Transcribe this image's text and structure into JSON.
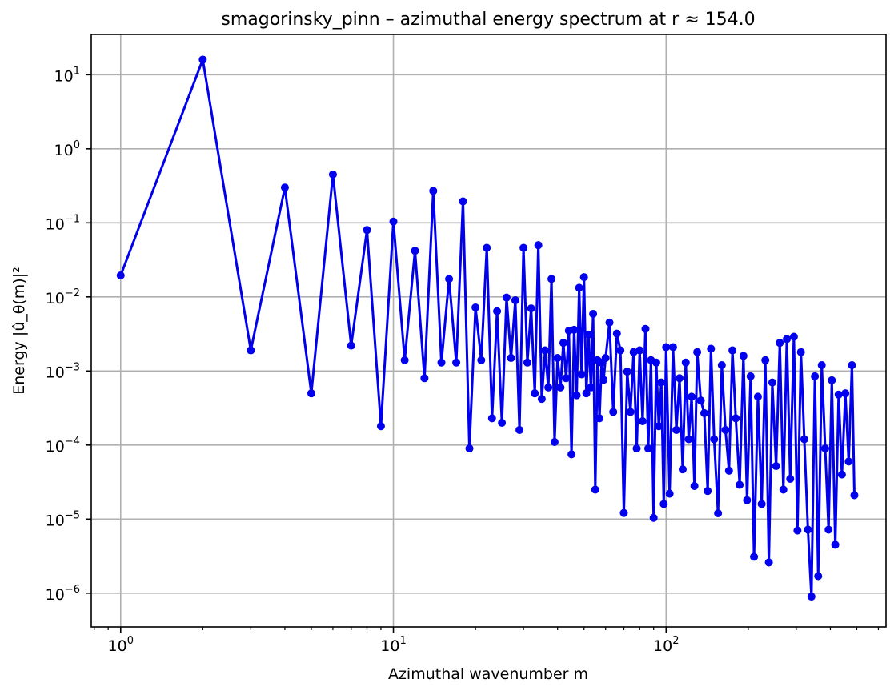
{
  "chart_data": {
    "type": "line",
    "title": "smagorinsky_pinn – azimuthal energy spectrum at r ≈ 154.0",
    "xlabel": "Azimuthal wavenumber m",
    "ylabel": "Energy |û_θ(m)|²",
    "xscale": "log",
    "yscale": "log",
    "xlim": [
      0.78,
      640
    ],
    "ylim": [
      3.5e-07,
      35
    ],
    "grid": true,
    "color": "#0000ee",
    "marker": "circle",
    "x_ticks": [
      {
        "value": 1,
        "label": "10",
        "exp": "0"
      },
      {
        "value": 10,
        "label": "10",
        "exp": "1"
      },
      {
        "value": 100,
        "label": "10",
        "exp": "2"
      }
    ],
    "y_ticks": [
      {
        "value": 1e-06,
        "label": "10",
        "exp": "−6"
      },
      {
        "value": 1e-05,
        "label": "10",
        "exp": "−5"
      },
      {
        "value": 0.0001,
        "label": "10",
        "exp": "−4"
      },
      {
        "value": 0.001,
        "label": "10",
        "exp": "−3"
      },
      {
        "value": 0.01,
        "label": "10",
        "exp": "−2"
      },
      {
        "value": 0.1,
        "label": "10",
        "exp": "−1"
      },
      {
        "value": 1,
        "label": "10",
        "exp": "0"
      },
      {
        "value": 10,
        "label": "10",
        "exp": "1"
      }
    ],
    "series": [
      {
        "x": [
          1,
          2,
          3,
          4,
          5,
          6,
          7,
          8,
          9,
          10,
          11,
          12,
          13,
          14,
          15,
          16,
          17,
          18,
          19,
          20,
          21,
          22,
          23,
          24,
          25,
          26,
          27,
          28,
          29,
          30,
          31,
          32,
          33,
          34,
          35,
          36,
          37,
          38,
          39,
          40,
          41,
          42,
          43,
          44,
          45,
          46,
          47,
          48,
          49,
          50,
          51,
          52,
          53,
          54,
          55,
          56,
          57,
          58,
          59,
          60,
          62,
          64,
          66,
          68,
          70,
          72,
          74,
          76,
          78,
          80,
          82,
          84,
          86,
          88,
          90,
          92,
          94,
          96,
          98,
          100,
          103,
          106,
          109,
          112,
          115,
          118,
          121,
          124,
          127,
          130,
          134,
          138,
          142,
          146,
          150,
          155,
          160,
          165,
          170,
          175,
          180,
          186,
          192,
          198,
          204,
          210,
          217,
          224,
          231,
          238,
          245,
          253,
          261,
          269,
          277,
          285,
          294,
          303,
          312,
          321,
          331,
          341,
          351,
          361,
          372,
          383,
          394,
          405,
          417,
          429,
          441,
          454,
          467,
          480,
          490
        ],
        "y": [
          0.0195,
          16,
          0.0019,
          0.3,
          0.0005,
          0.45,
          0.0022,
          0.08,
          0.00018,
          0.104,
          0.0014,
          0.042,
          0.0008,
          0.27,
          0.0013,
          0.0175,
          0.0013,
          0.195,
          9e-05,
          0.0072,
          0.0014,
          0.046,
          0.00023,
          0.0064,
          0.0002,
          0.0098,
          0.0015,
          0.009,
          0.00016,
          0.046,
          0.0013,
          0.007,
          0.0005,
          0.05,
          0.00042,
          0.0019,
          0.0006,
          0.0175,
          0.00011,
          0.0015,
          0.0006,
          0.0024,
          0.0008,
          0.0035,
          7.5e-05,
          0.0036,
          0.00047,
          0.0133,
          0.0009,
          0.0185,
          0.0005,
          0.0031,
          0.0006,
          0.0059,
          2.5e-05,
          0.0014,
          0.00023,
          0.0013,
          0.00076,
          0.0015,
          0.0045,
          0.00028,
          0.0032,
          0.0019,
          1.21e-05,
          0.00098,
          0.00028,
          0.0018,
          9e-05,
          0.0019,
          0.00021,
          0.0037,
          9e-05,
          0.0014,
          1.04e-05,
          0.0013,
          0.00018,
          0.0007,
          1.6e-05,
          0.0021,
          2.2e-05,
          0.0021,
          0.00016,
          0.0008,
          4.7e-05,
          0.0013,
          0.00012,
          0.00045,
          2.8e-05,
          0.0018,
          0.0004,
          0.00027,
          2.4e-05,
          0.002,
          0.00012,
          1.2e-05,
          0.0012,
          0.00016,
          4.5e-05,
          0.0019,
          0.00023,
          2.9e-05,
          0.0016,
          1.8e-05,
          0.00085,
          3.1e-06,
          0.00045,
          1.6e-05,
          0.0014,
          2.6e-06,
          0.0007,
          5.2e-05,
          0.0024,
          2.5e-05,
          0.0027,
          3.5e-05,
          0.0029,
          7e-06,
          0.0018,
          0.00012,
          7.2e-06,
          9e-07,
          0.00085,
          1.7e-06,
          0.0012,
          9e-05,
          7.2e-06,
          0.00075,
          4.5e-06,
          0.00048,
          4e-05,
          0.0005,
          6e-05,
          0.0012,
          2.1e-05
        ]
      }
    ]
  }
}
